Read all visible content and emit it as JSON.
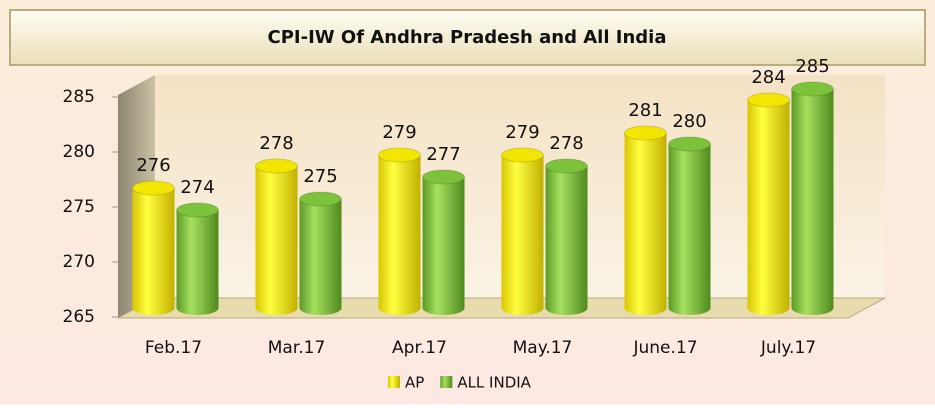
{
  "chart_data": {
    "type": "bar",
    "title": "CPI-IW Of Andhra Pradesh and All India",
    "categories": [
      "Feb.17",
      "Mar.17",
      "Apr.17",
      "May.17",
      "June.17",
      "July.17"
    ],
    "series": [
      {
        "name": "AP",
        "color": "#f2e600",
        "values": [
          276,
          278,
          279,
          279,
          281,
          284
        ]
      },
      {
        "name": "ALL INDIA",
        "color": "#7cc23a",
        "values": [
          274,
          275,
          277,
          278,
          280,
          285
        ]
      }
    ],
    "ylim": [
      265,
      285
    ],
    "yticks": [
      265,
      270,
      275,
      280,
      285
    ],
    "legend": "bottom"
  }
}
